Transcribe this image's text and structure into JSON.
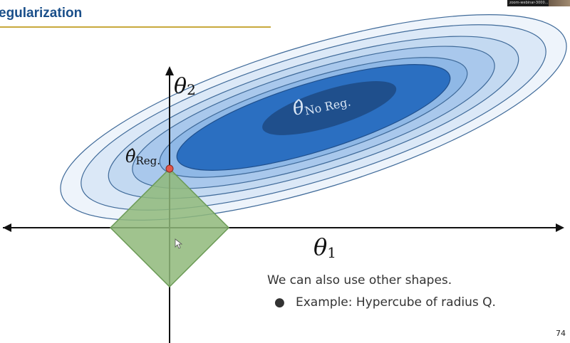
{
  "header": {
    "title": "egularization"
  },
  "thumbnail": {
    "label": "zoom-webinar-3000..."
  },
  "diagram": {
    "axis_x_symbol": "θ",
    "axis_x_subscript": "1",
    "axis_y_symbol": "θ",
    "axis_y_subscript": "2",
    "unregularized_symbol": "θ̂",
    "unregularized_subscript": "No Reg.",
    "regularized_symbol": "θ̂",
    "regularized_subscript": "Reg.",
    "colors": {
      "contour_outer": "#dbe8f7",
      "contour_mid1": "#c3d9f1",
      "contour_mid2": "#a9c8ec",
      "contour_mid3": "#8fb8e6",
      "contour_inner": "#2b6fc1",
      "contour_core": "#1f4f8c",
      "constraint_fill": "#8fb87a",
      "constraint_stroke": "#6a9a55",
      "solution_point": "#e0564a"
    }
  },
  "text": {
    "caption": "We can also use other shapes.",
    "bullet": "Example: Hypercube of radius Q."
  },
  "footer": {
    "page_number": "74"
  }
}
